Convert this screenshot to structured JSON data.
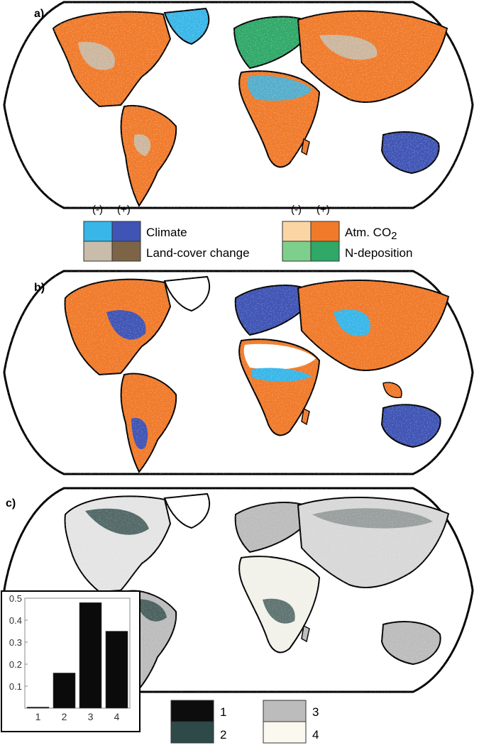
{
  "panels": [
    {
      "label": "a)"
    },
    {
      "label": "b)"
    },
    {
      "label": "c)"
    }
  ],
  "legend_top": {
    "sign_negative": "(-)",
    "sign_positive": "(+)",
    "entries": [
      {
        "label": "Climate",
        "negative_color": "#38b6e8",
        "positive_color": "#3f54b4"
      },
      {
        "label": "Land-cover change",
        "negative_color": "#c8bcaa",
        "positive_color": "#7e6446"
      },
      {
        "label": "Atm. CO",
        "label_subscript": "2",
        "negative_color": "#fbd6a4",
        "positive_color": "#f07a2a"
      },
      {
        "label": "N-deposition",
        "negative_color": "#7fcf8c",
        "positive_color": "#2fa868"
      }
    ]
  },
  "legend_bottom": {
    "entries": [
      {
        "label": "1",
        "color": "#0d0d0d"
      },
      {
        "label": "2",
        "color": "#2e4a48"
      },
      {
        "label": "3",
        "color": "#bcbcbc"
      },
      {
        "label": "4",
        "color": "#fbf9ef"
      }
    ]
  },
  "chart_data": {
    "type": "bar",
    "categories": [
      "1",
      "2",
      "3",
      "4"
    ],
    "values": [
      0.005,
      0.16,
      0.48,
      0.35
    ],
    "ylim": [
      0,
      0.5
    ],
    "yticks": [
      "0.1",
      "0.2",
      "0.3",
      "0.4",
      "0.5"
    ],
    "bar_color": "#0b0b0b"
  }
}
